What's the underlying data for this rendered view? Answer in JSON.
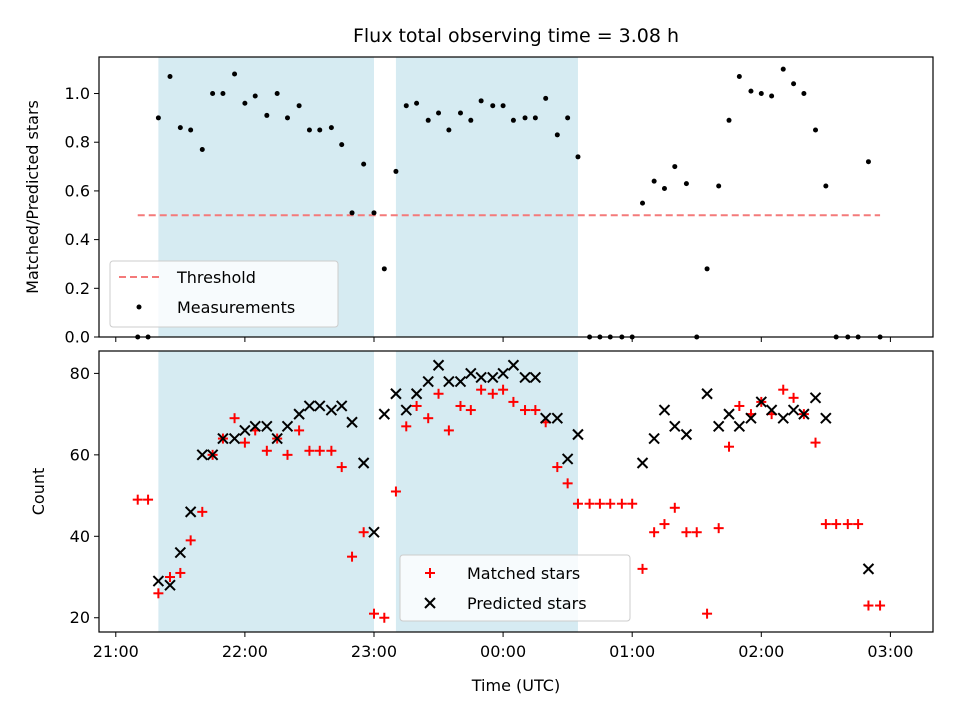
{
  "chart_data": {
    "title": "Flux total observing time = 3.08 h",
    "xlabel": "Time (UTC)",
    "x_unit": "hours",
    "x_note_ticks": [
      "21:00",
      "22:00",
      "23:00",
      "00:00",
      "01:00",
      "02:00",
      "03:00"
    ],
    "x_tick_hours": [
      21,
      22,
      23,
      24,
      25,
      26,
      27
    ],
    "xlim": [
      20.87,
      27.33
    ],
    "shaded_intervals_hours": [
      [
        21.33,
        23.0
      ],
      [
        23.17,
        24.58
      ]
    ],
    "panels": [
      {
        "type": "scatter",
        "ylabel": "Matched/Predicted stars",
        "ylim": [
          0,
          1.15
        ],
        "yticks": [
          0.0,
          0.2,
          0.4,
          0.6,
          0.8,
          1.0
        ],
        "ytick_labels": [
          "0.0",
          "0.2",
          "0.4",
          "0.6",
          "0.8",
          "1.0"
        ],
        "threshold": {
          "name": "Threshold",
          "value": 0.5,
          "x_range_hours": [
            21.17,
            26.92
          ],
          "color": "#f47a7a"
        },
        "series": [
          {
            "name": "Measurements",
            "color": "#000000",
            "x": [
              21.17,
              21.25,
              21.33,
              21.42,
              21.5,
              21.58,
              21.67,
              21.75,
              21.83,
              21.92,
              22.0,
              22.08,
              22.17,
              22.25,
              22.33,
              22.42,
              22.5,
              22.58,
              22.67,
              22.75,
              22.83,
              22.92,
              23.0,
              23.08,
              23.17,
              23.25,
              23.33,
              23.42,
              23.5,
              23.58,
              23.67,
              23.75,
              23.83,
              23.92,
              24.0,
              24.08,
              24.17,
              24.25,
              24.33,
              24.42,
              24.5,
              24.58,
              24.67,
              24.75,
              24.83,
              24.92,
              25.0,
              25.08,
              25.17,
              25.25,
              25.33,
              25.42,
              25.5,
              25.58,
              25.67,
              25.75,
              25.83,
              25.92,
              26.0,
              26.08,
              26.17,
              26.25,
              26.33,
              26.42,
              26.5,
              26.58,
              26.67,
              26.75,
              26.83,
              26.92
            ],
            "y": [
              0.0,
              0.0,
              0.9,
              1.07,
              0.86,
              0.85,
              0.77,
              1.0,
              1.0,
              1.08,
              0.96,
              0.99,
              0.91,
              1.0,
              0.9,
              0.95,
              0.85,
              0.85,
              0.86,
              0.79,
              0.51,
              0.71,
              0.51,
              0.28,
              0.68,
              0.95,
              0.96,
              0.89,
              0.92,
              0.85,
              0.92,
              0.89,
              0.97,
              0.95,
              0.95,
              0.89,
              0.9,
              0.9,
              0.98,
              0.83,
              0.9,
              0.74,
              0.0,
              0.0,
              0.0,
              0.0,
              0.0,
              0.55,
              0.64,
              0.61,
              0.7,
              0.63,
              0.0,
              0.28,
              0.62,
              0.89,
              1.07,
              1.01,
              1.0,
              0.99,
              1.1,
              1.04,
              1.0,
              0.85,
              0.62,
              0.0,
              0.0,
              0.0,
              0.72,
              0.0
            ]
          }
        ],
        "legend": {
          "position": "lower-left",
          "entries": [
            "Threshold",
            "Measurements"
          ]
        }
      },
      {
        "type": "scatter",
        "ylabel": "Count",
        "ylim": [
          16.5,
          85.5
        ],
        "yticks": [
          20,
          40,
          60,
          80
        ],
        "ytick_labels": [
          "20",
          "40",
          "60",
          "80"
        ],
        "series": [
          {
            "name": "Matched stars",
            "marker": "+",
            "color": "#ff0000",
            "x": [
              21.17,
              21.25,
              21.33,
              21.42,
              21.5,
              21.58,
              21.67,
              21.75,
              21.83,
              21.92,
              22.0,
              22.08,
              22.17,
              22.25,
              22.33,
              22.42,
              22.5,
              22.58,
              22.67,
              22.75,
              22.83,
              22.92,
              23.0,
              23.08,
              23.17,
              23.25,
              23.33,
              23.42,
              23.5,
              23.58,
              23.67,
              23.75,
              23.83,
              23.92,
              24.0,
              24.08,
              24.17,
              24.25,
              24.33,
              24.42,
              24.5,
              24.58,
              24.67,
              24.75,
              24.83,
              24.92,
              25.0,
              25.08,
              25.17,
              25.25,
              25.33,
              25.42,
              25.5,
              25.58,
              25.67,
              25.75,
              25.83,
              25.92,
              26.0,
              26.08,
              26.17,
              26.25,
              26.33,
              26.42,
              26.5,
              26.58,
              26.67,
              26.75,
              26.83,
              26.92
            ],
            "y": [
              49,
              49,
              26,
              30,
              31,
              39,
              46,
              60,
              64,
              69,
              63,
              66,
              61,
              64,
              60,
              66,
              61,
              61,
              61,
              57,
              35,
              41,
              21,
              20,
              51,
              67,
              72,
              69,
              75,
              66,
              72,
              71,
              76,
              75,
              76,
              73,
              71,
              71,
              68,
              57,
              53,
              48,
              48,
              48,
              48,
              48,
              48,
              32,
              41,
              43,
              47,
              41,
              41,
              21,
              42,
              62,
              72,
              70,
              73,
              70,
              76,
              74,
              70,
              63,
              43,
              43,
              43,
              43,
              23,
              23
            ]
          },
          {
            "name": "Predicted stars",
            "marker": "x",
            "color": "#000000",
            "x": [
              21.33,
              21.42,
              21.5,
              21.58,
              21.67,
              21.75,
              21.83,
              21.92,
              22.0,
              22.08,
              22.17,
              22.25,
              22.33,
              22.42,
              22.5,
              22.58,
              22.67,
              22.75,
              22.83,
              22.92,
              23.0,
              23.08,
              23.17,
              23.25,
              23.33,
              23.42,
              23.5,
              23.58,
              23.67,
              23.75,
              23.83,
              23.92,
              24.0,
              24.08,
              24.17,
              24.25,
              24.33,
              24.42,
              24.5,
              24.58,
              25.08,
              25.17,
              25.25,
              25.33,
              25.42,
              25.58,
              25.67,
              25.75,
              25.83,
              25.92,
              26.0,
              26.08,
              26.17,
              26.25,
              26.33,
              26.42,
              26.5,
              26.83
            ],
            "y": [
              29,
              28,
              36,
              46,
              60,
              60,
              64,
              64,
              66,
              67,
              67,
              64,
              67,
              70,
              72,
              72,
              71,
              72,
              68,
              58,
              41,
              70,
              75,
              71,
              75,
              78,
              82,
              78,
              78,
              80,
              79,
              79,
              80,
              82,
              79,
              79,
              69,
              69,
              59,
              65,
              58,
              64,
              71,
              67,
              65,
              75,
              67,
              70,
              67,
              69,
              73,
              71,
              69,
              71,
              70,
              74,
              69,
              32
            ]
          }
        ],
        "legend": {
          "position": "lower-center",
          "entries": [
            "Matched stars",
            "Predicted stars"
          ]
        }
      }
    ]
  }
}
